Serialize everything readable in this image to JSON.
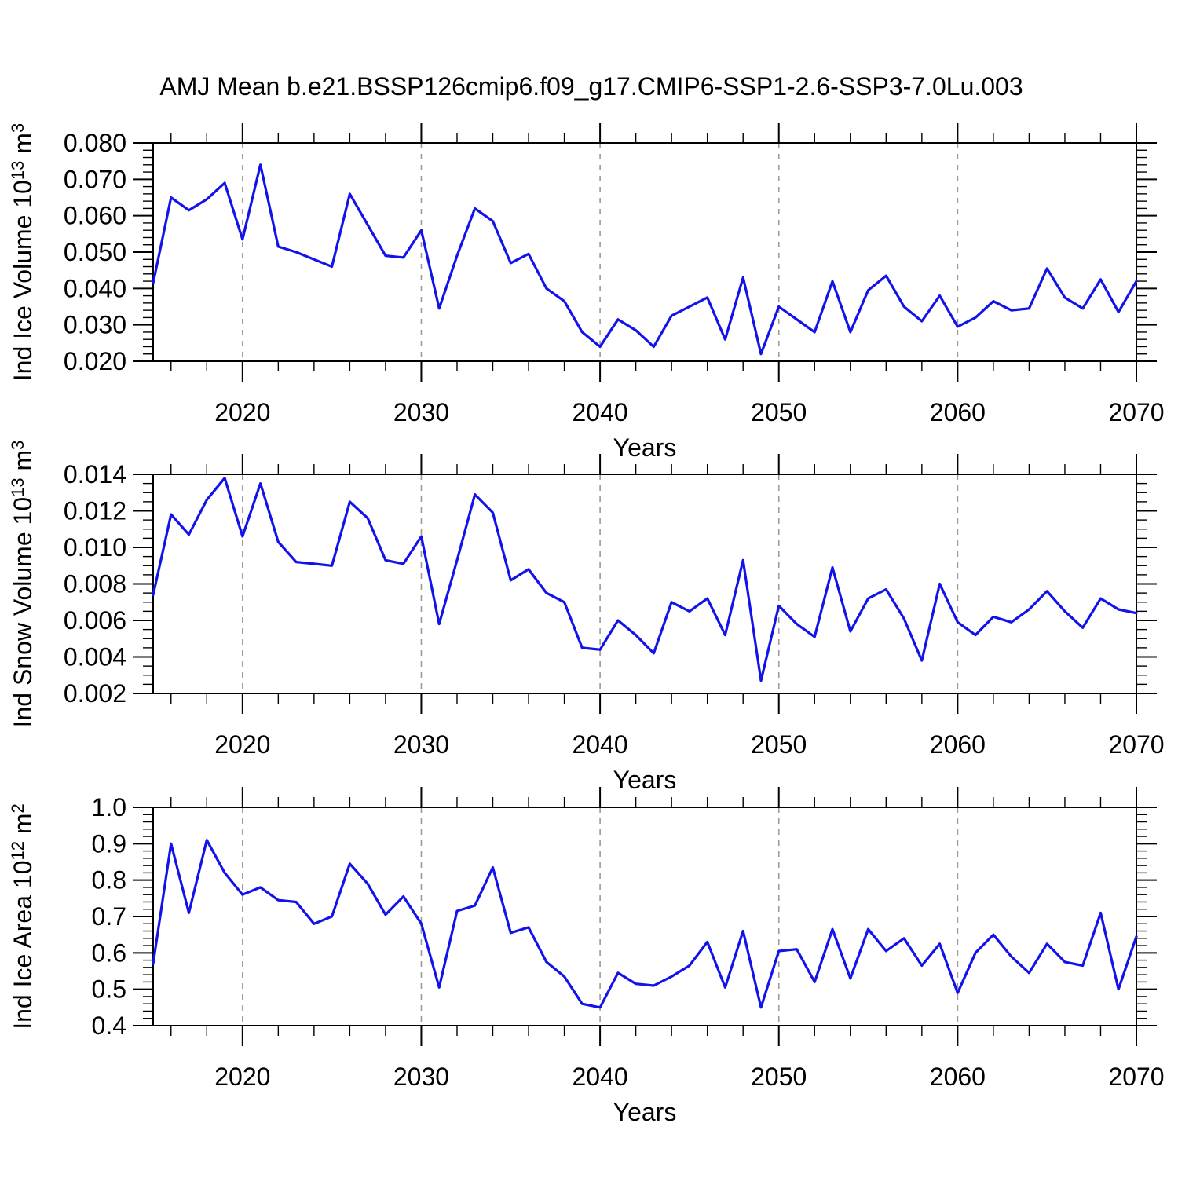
{
  "title": "AMJ Mean b.e21.BSSP126cmip6.f09_g17.CMIP6-SSP1-2.6-SSP3-7.0Lu.003",
  "styles": {
    "line_color": "#1212EA",
    "grid_color": "#9A9A9A",
    "axis_color": "#000000",
    "background": "#FFFFFF"
  },
  "chart_data": [
    {
      "type": "line",
      "id": "ice-volume",
      "ylabel": "Ind Ice Volume 10¹³ m³",
      "ylabel_parts": [
        {
          "t": "Ind Ice Volume 10"
        },
        {
          "t": "13",
          "sup": true
        },
        {
          "t": " m"
        },
        {
          "t": "3",
          "sup": true
        }
      ],
      "xlabel": "Years",
      "ylim": [
        0.02,
        0.08
      ],
      "yticks": [
        0.02,
        0.03,
        0.04,
        0.05,
        0.06,
        0.07,
        0.08
      ],
      "ytick_labels": [
        "0.020",
        "0.030",
        "0.040",
        "0.050",
        "0.060",
        "0.070",
        "0.080"
      ],
      "y_minor_step": 0.002,
      "xlim": [
        2015,
        2070
      ],
      "xticks": [
        2020,
        2030,
        2040,
        2050,
        2060,
        2070
      ],
      "xtick_labels": [
        "2020",
        "2030",
        "2040",
        "2050",
        "2060",
        "2070"
      ],
      "x_minor_step": 2,
      "xgrid": [
        2020,
        2030,
        2040,
        2050,
        2060
      ],
      "grid_on": true,
      "legend": "none",
      "x": [
        2015,
        2016,
        2017,
        2018,
        2019,
        2020,
        2021,
        2022,
        2023,
        2024,
        2025,
        2026,
        2027,
        2028,
        2029,
        2030,
        2031,
        2032,
        2033,
        2034,
        2035,
        2036,
        2037,
        2038,
        2039,
        2040,
        2041,
        2042,
        2043,
        2044,
        2045,
        2046,
        2047,
        2048,
        2049,
        2050,
        2051,
        2052,
        2053,
        2054,
        2055,
        2056,
        2057,
        2058,
        2059,
        2060,
        2061,
        2062,
        2063,
        2064,
        2065,
        2066,
        2067,
        2068,
        2069,
        2070
      ],
      "values": [
        0.0415,
        0.065,
        0.0615,
        0.0645,
        0.069,
        0.0535,
        0.074,
        0.0515,
        0.05,
        0.048,
        0.046,
        0.066,
        0.0575,
        0.049,
        0.0485,
        0.056,
        0.0345,
        0.049,
        0.062,
        0.0585,
        0.047,
        0.0495,
        0.04,
        0.0365,
        0.028,
        0.024,
        0.0315,
        0.0285,
        0.024,
        0.0325,
        0.035,
        0.0375,
        0.026,
        0.043,
        0.022,
        0.035,
        0.0315,
        0.028,
        0.042,
        0.028,
        0.0395,
        0.0435,
        0.035,
        0.031,
        0.038,
        0.0295,
        0.032,
        0.0365,
        0.034,
        0.0345,
        0.0455,
        0.0375,
        0.0345,
        0.0425,
        0.0335,
        0.042
      ]
    },
    {
      "type": "line",
      "id": "snow-volume",
      "ylabel": "Ind Snow Volume 10¹³ m³",
      "ylabel_parts": [
        {
          "t": "Ind Snow Volume 10"
        },
        {
          "t": "13",
          "sup": true
        },
        {
          "t": " m"
        },
        {
          "t": "3",
          "sup": true
        }
      ],
      "xlabel": "Years",
      "ylim": [
        0.002,
        0.014
      ],
      "yticks": [
        0.002,
        0.004,
        0.006,
        0.008,
        0.01,
        0.012,
        0.014
      ],
      "ytick_labels": [
        "0.002",
        "0.004",
        "0.006",
        "0.008",
        "0.010",
        "0.012",
        "0.014"
      ],
      "y_minor_step": 0.0005,
      "xlim": [
        2015,
        2070
      ],
      "xticks": [
        2020,
        2030,
        2040,
        2050,
        2060,
        2070
      ],
      "xtick_labels": [
        "2020",
        "2030",
        "2040",
        "2050",
        "2060",
        "2070"
      ],
      "x_minor_step": 2,
      "xgrid": [
        2020,
        2030,
        2040,
        2050,
        2060
      ],
      "grid_on": true,
      "legend": "none",
      "x": [
        2015,
        2016,
        2017,
        2018,
        2019,
        2020,
        2021,
        2022,
        2023,
        2024,
        2025,
        2026,
        2027,
        2028,
        2029,
        2030,
        2031,
        2032,
        2033,
        2034,
        2035,
        2036,
        2037,
        2038,
        2039,
        2040,
        2041,
        2042,
        2043,
        2044,
        2045,
        2046,
        2047,
        2048,
        2049,
        2050,
        2051,
        2052,
        2053,
        2054,
        2055,
        2056,
        2057,
        2058,
        2059,
        2060,
        2061,
        2062,
        2063,
        2064,
        2065,
        2066,
        2067,
        2068,
        2069,
        2070
      ],
      "values": [
        0.0074,
        0.0118,
        0.0107,
        0.0126,
        0.0138,
        0.0106,
        0.0135,
        0.0103,
        0.0092,
        0.0091,
        0.009,
        0.0125,
        0.0116,
        0.0093,
        0.0091,
        0.0106,
        0.0058,
        0.0093,
        0.0129,
        0.0119,
        0.0082,
        0.0088,
        0.0075,
        0.007,
        0.0045,
        0.0044,
        0.006,
        0.0052,
        0.0042,
        0.007,
        0.0065,
        0.0072,
        0.0052,
        0.0093,
        0.0027,
        0.0068,
        0.0058,
        0.0051,
        0.0089,
        0.0054,
        0.0072,
        0.0077,
        0.0061,
        0.0038,
        0.008,
        0.0059,
        0.0052,
        0.0062,
        0.0059,
        0.0066,
        0.0076,
        0.0065,
        0.0056,
        0.0072,
        0.0066,
        0.0064
      ]
    },
    {
      "type": "line",
      "id": "ice-area",
      "ylabel": "Ind Ice Area 10¹² m²",
      "ylabel_parts": [
        {
          "t": "Ind Ice Area 10"
        },
        {
          "t": "12",
          "sup": true
        },
        {
          "t": " m"
        },
        {
          "t": "2",
          "sup": true
        }
      ],
      "xlabel": "Years",
      "ylim": [
        0.4,
        1.0
      ],
      "yticks": [
        0.4,
        0.5,
        0.6,
        0.7,
        0.8,
        0.9,
        1.0
      ],
      "ytick_labels": [
        "0.4",
        "0.5",
        "0.6",
        "0.7",
        "0.8",
        "0.9",
        "1.0"
      ],
      "y_minor_step": 0.02,
      "xlim": [
        2015,
        2070
      ],
      "xticks": [
        2020,
        2030,
        2040,
        2050,
        2060,
        2070
      ],
      "xtick_labels": [
        "2020",
        "2030",
        "2040",
        "2050",
        "2060",
        "2070"
      ],
      "x_minor_step": 2,
      "xgrid": [
        2020,
        2030,
        2040,
        2050,
        2060
      ],
      "grid_on": true,
      "legend": "none",
      "x": [
        2015,
        2016,
        2017,
        2018,
        2019,
        2020,
        2021,
        2022,
        2023,
        2024,
        2025,
        2026,
        2027,
        2028,
        2029,
        2030,
        2031,
        2032,
        2033,
        2034,
        2035,
        2036,
        2037,
        2038,
        2039,
        2040,
        2041,
        2042,
        2043,
        2044,
        2045,
        2046,
        2047,
        2048,
        2049,
        2050,
        2051,
        2052,
        2053,
        2054,
        2055,
        2056,
        2057,
        2058,
        2059,
        2060,
        2061,
        2062,
        2063,
        2064,
        2065,
        2066,
        2067,
        2068,
        2069,
        2070
      ],
      "values": [
        0.57,
        0.9,
        0.71,
        0.91,
        0.82,
        0.76,
        0.78,
        0.745,
        0.74,
        0.68,
        0.7,
        0.845,
        0.79,
        0.705,
        0.755,
        0.68,
        0.505,
        0.715,
        0.73,
        0.835,
        0.655,
        0.67,
        0.575,
        0.535,
        0.46,
        0.45,
        0.545,
        0.515,
        0.51,
        0.535,
        0.565,
        0.63,
        0.505,
        0.66,
        0.45,
        0.605,
        0.61,
        0.52,
        0.665,
        0.53,
        0.665,
        0.605,
        0.64,
        0.565,
        0.625,
        0.49,
        0.6,
        0.65,
        0.59,
        0.545,
        0.625,
        0.575,
        0.565,
        0.71,
        0.5,
        0.645
      ]
    }
  ]
}
